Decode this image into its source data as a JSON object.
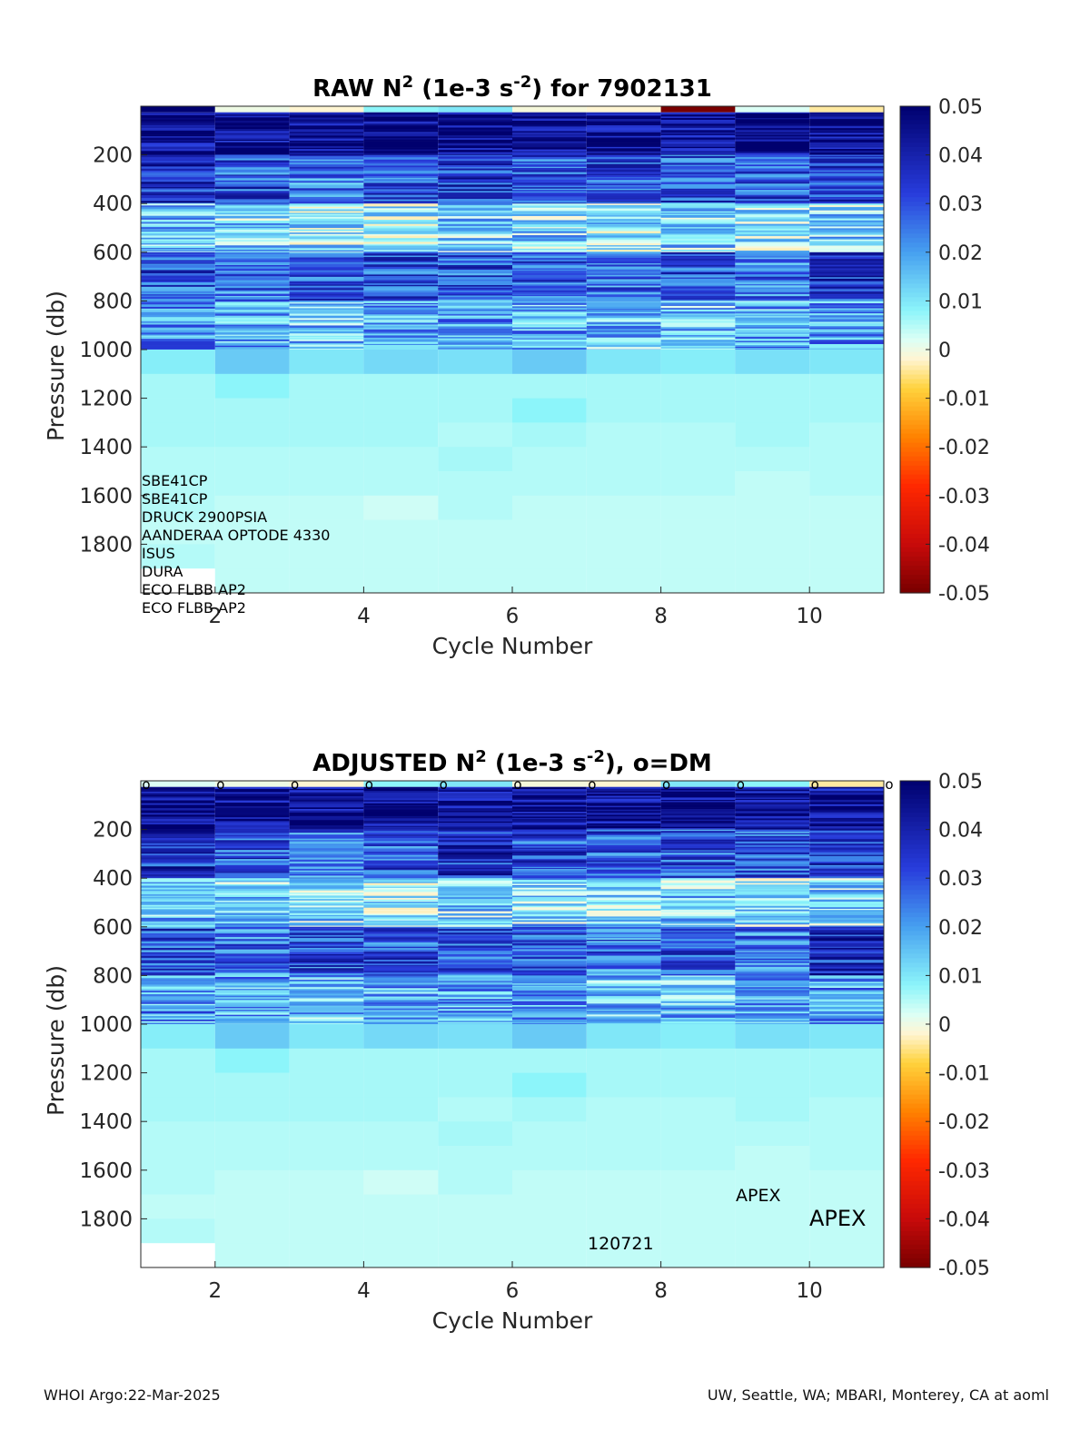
{
  "footer": {
    "left": "WHOI Argo:22-Mar-2025",
    "right": "UW, Seattle, WA; MBARI, Monterey, CA at aoml"
  },
  "chart_data": [
    {
      "type": "heatmap",
      "title": {
        "main": "RAW N",
        "sup1": "2",
        "mid": " (1e-3 s",
        "sup2": "-2",
        "end": ") for 7902131"
      },
      "xlabel": "Cycle Number",
      "ylabel": "Pressure (db)",
      "xlim": [
        1,
        11
      ],
      "ylim": [
        2000,
        0
      ],
      "xticks": [
        2,
        4,
        6,
        8,
        10
      ],
      "yticks": [
        200,
        400,
        600,
        800,
        1000,
        1200,
        1400,
        1600,
        1800
      ],
      "cycles": [
        1,
        2,
        3,
        4,
        5,
        6,
        7,
        8,
        9,
        10
      ],
      "pressure_levels": [
        100,
        300,
        500,
        700,
        900,
        1050,
        1150,
        1250,
        1350,
        1450,
        1550,
        1650,
        1750,
        1850,
        1950
      ],
      "approx_values": [
        [
          0.045,
          0.045,
          0.045,
          0.045,
          0.045,
          0.045,
          0.045,
          0.045,
          0.045,
          0.045
        ],
        [
          0.035,
          0.03,
          0.025,
          0.03,
          0.035,
          0.03,
          0.03,
          0.03,
          0.03,
          0.035
        ],
        [
          0.015,
          0.012,
          0.01,
          0.008,
          0.012,
          0.012,
          0.01,
          0.012,
          0.01,
          0.012
        ],
        [
          0.03,
          0.025,
          0.03,
          0.03,
          0.03,
          0.03,
          0.025,
          0.03,
          0.025,
          0.035
        ],
        [
          0.02,
          0.018,
          0.015,
          0.018,
          0.02,
          0.018,
          0.015,
          0.015,
          0.018,
          0.02
        ],
        [
          0.009,
          0.014,
          0.01,
          0.012,
          0.011,
          0.014,
          0.01,
          0.009,
          0.011,
          0.01
        ],
        [
          0.006,
          0.008,
          0.006,
          0.006,
          0.006,
          0.006,
          0.006,
          0.006,
          0.006,
          0.006
        ],
        [
          0.006,
          0.006,
          0.006,
          0.006,
          0.006,
          0.008,
          0.006,
          0.006,
          0.006,
          0.006
        ],
        [
          0.006,
          0.006,
          0.006,
          0.006,
          0.005,
          0.006,
          0.005,
          0.005,
          0.006,
          0.005
        ],
        [
          0.005,
          0.005,
          0.005,
          0.005,
          0.006,
          0.005,
          0.005,
          0.005,
          0.005,
          0.005
        ],
        [
          0.005,
          0.005,
          0.005,
          0.005,
          0.005,
          0.005,
          0.005,
          0.005,
          0.004,
          0.005
        ],
        [
          0.005,
          0.004,
          0.004,
          0.003,
          0.005,
          0.004,
          0.004,
          0.004,
          0.004,
          0.004
        ],
        [
          0.004,
          0.004,
          0.004,
          0.004,
          0.004,
          0.004,
          0.004,
          0.004,
          0.004,
          0.004
        ],
        [
          0.005,
          0.004,
          0.004,
          0.004,
          0.004,
          0.004,
          0.004,
          0.004,
          0.004,
          0.004
        ],
        [
          null,
          0.004,
          0.004,
          0.004,
          0.004,
          0.004,
          0.004,
          0.004,
          0.004,
          0.004
        ]
      ],
      "surface_values": [
        0.05,
        0.0,
        -0.002,
        0.008,
        0.01,
        -0.001,
        -0.002,
        -0.05,
        0.002,
        -0.004
      ],
      "colorbar": {
        "ticks": [
          "0.05",
          "0.04",
          "0.03",
          "0.02",
          "0.01",
          "0",
          "-0.01",
          "-0.02",
          "-0.03",
          "-0.04",
          "-0.05"
        ],
        "range": [
          -0.05,
          0.05
        ]
      },
      "annotations": [
        "SBE41CP",
        "SBE41CP",
        "DRUCK 2900PSIA",
        "AANDERAA OPTODE 4330",
        "ISUS",
        "DURA",
        "ECO FLBB AP2",
        "ECO FLBB AP2"
      ]
    },
    {
      "type": "heatmap",
      "title": {
        "main": "ADJUSTED N",
        "sup1": "2",
        "mid": " (1e-3 s",
        "sup2": "-2",
        "end": "), o=DM"
      },
      "xlabel": "Cycle Number",
      "ylabel": "Pressure (db)",
      "xlim": [
        1,
        11
      ],
      "ylim": [
        2000,
        0
      ],
      "xticks": [
        2,
        4,
        6,
        8,
        10
      ],
      "yticks": [
        200,
        400,
        600,
        800,
        1000,
        1200,
        1400,
        1600,
        1800
      ],
      "cycles": [
        1,
        2,
        3,
        4,
        5,
        6,
        7,
        8,
        9,
        10
      ],
      "dm_cycles": [
        1,
        2,
        3,
        4,
        5,
        6,
        7,
        8,
        9,
        10,
        11
      ],
      "dm_marker": "o",
      "pressure_levels": [
        100,
        300,
        500,
        700,
        900,
        1050,
        1150,
        1250,
        1350,
        1450,
        1550,
        1650,
        1750,
        1850,
        1950
      ],
      "approx_values": [
        [
          0.045,
          0.045,
          0.045,
          0.045,
          0.045,
          0.045,
          0.045,
          0.045,
          0.045,
          0.045
        ],
        [
          0.035,
          0.03,
          0.025,
          0.03,
          0.035,
          0.03,
          0.03,
          0.03,
          0.03,
          0.035
        ],
        [
          0.015,
          0.012,
          0.01,
          0.008,
          0.012,
          0.012,
          0.01,
          0.012,
          0.01,
          0.012
        ],
        [
          0.03,
          0.025,
          0.03,
          0.03,
          0.03,
          0.03,
          0.025,
          0.03,
          0.025,
          0.035
        ],
        [
          0.02,
          0.018,
          0.015,
          0.018,
          0.02,
          0.018,
          0.015,
          0.015,
          0.018,
          0.02
        ],
        [
          0.009,
          0.014,
          0.01,
          0.012,
          0.011,
          0.014,
          0.01,
          0.009,
          0.011,
          0.01
        ],
        [
          0.006,
          0.008,
          0.006,
          0.006,
          0.006,
          0.006,
          0.006,
          0.006,
          0.006,
          0.006
        ],
        [
          0.006,
          0.006,
          0.006,
          0.006,
          0.006,
          0.008,
          0.006,
          0.006,
          0.006,
          0.006
        ],
        [
          0.006,
          0.006,
          0.006,
          0.006,
          0.005,
          0.006,
          0.005,
          0.005,
          0.006,
          0.005
        ],
        [
          0.005,
          0.005,
          0.005,
          0.005,
          0.006,
          0.005,
          0.005,
          0.005,
          0.005,
          0.005
        ],
        [
          0.005,
          0.005,
          0.005,
          0.005,
          0.005,
          0.005,
          0.005,
          0.005,
          0.004,
          0.005
        ],
        [
          0.005,
          0.004,
          0.004,
          0.003,
          0.005,
          0.004,
          0.004,
          0.004,
          0.004,
          0.004
        ],
        [
          0.004,
          0.004,
          0.004,
          0.004,
          0.004,
          0.004,
          0.004,
          0.004,
          0.004,
          0.004
        ],
        [
          0.005,
          0.004,
          0.004,
          0.004,
          0.004,
          0.004,
          0.004,
          0.004,
          0.004,
          0.004
        ],
        [
          null,
          0.004,
          0.004,
          0.004,
          0.004,
          0.004,
          0.004,
          0.004,
          0.004,
          0.004
        ]
      ],
      "surface_values": [
        0.002,
        0.0,
        -0.002,
        0.008,
        0.01,
        -0.001,
        -0.002,
        0.01,
        0.008,
        -0.004
      ],
      "colorbar": {
        "ticks": [
          "0.05",
          "0.04",
          "0.03",
          "0.02",
          "0.01",
          "0",
          "-0.01",
          "-0.02",
          "-0.03",
          "-0.04",
          "-0.05"
        ],
        "range": [
          -0.05,
          0.05
        ]
      },
      "annotations": [
        "APEX",
        "APEX",
        "120721"
      ]
    }
  ]
}
